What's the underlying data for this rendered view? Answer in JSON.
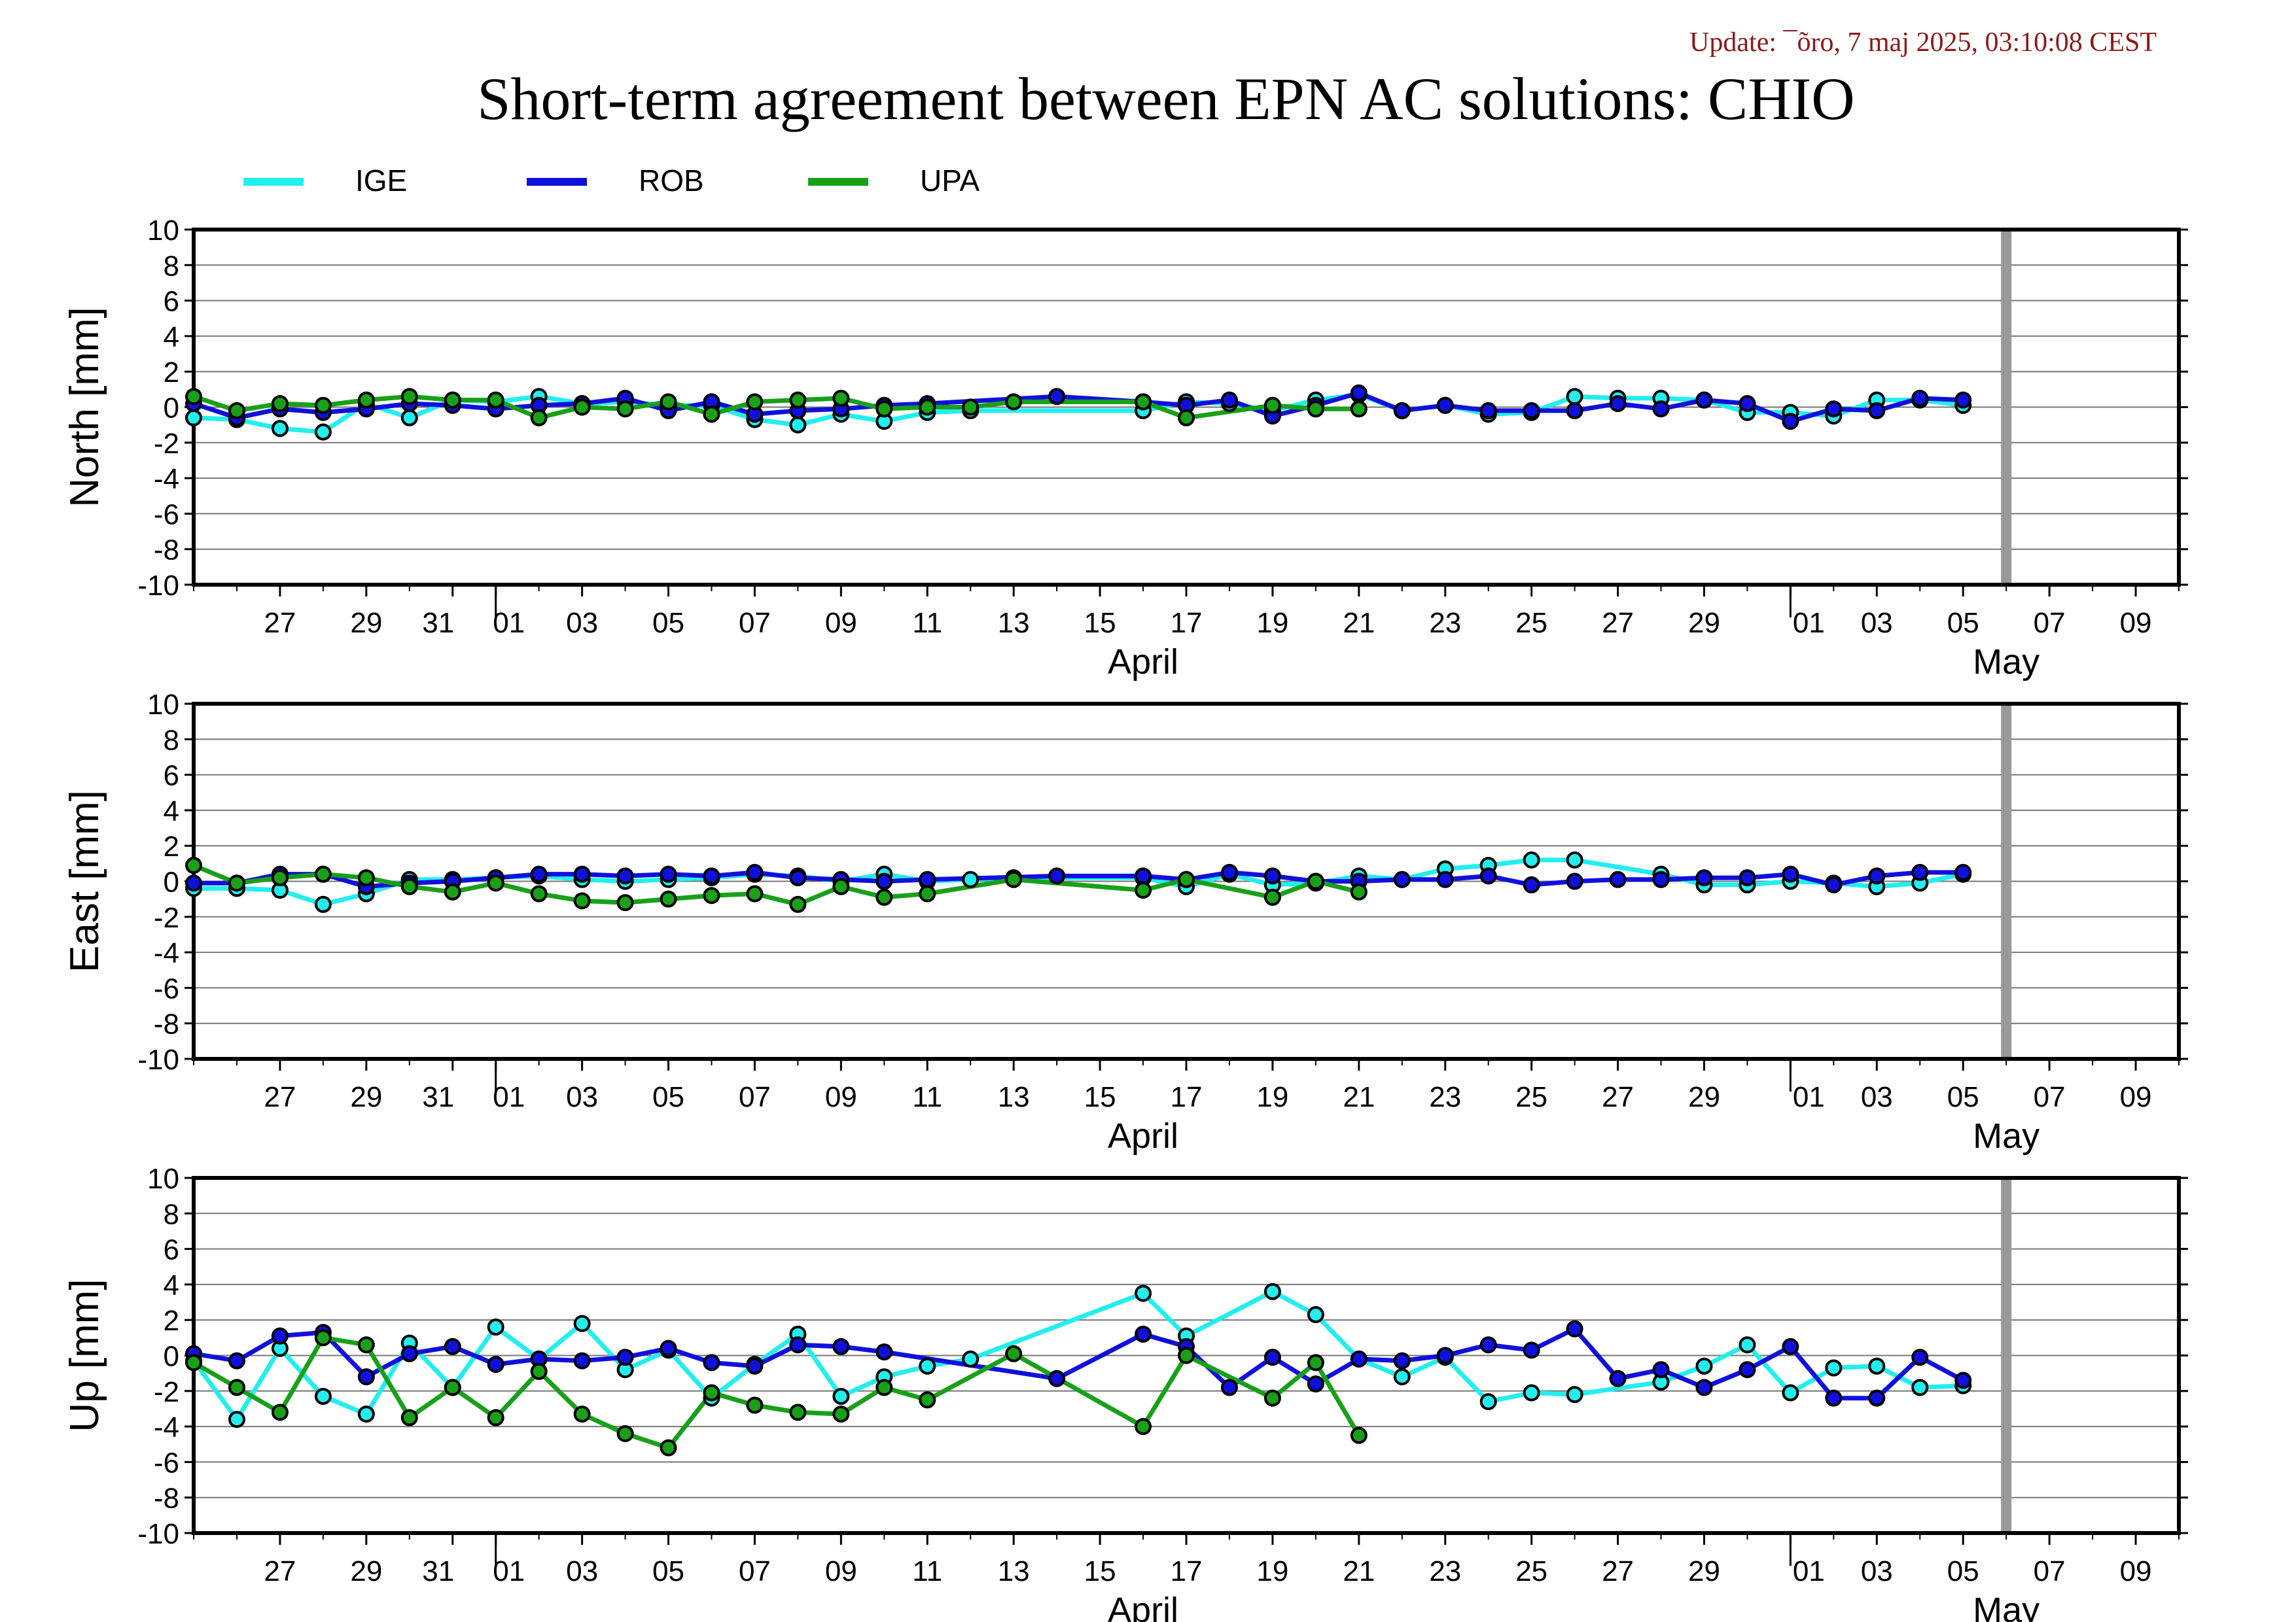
{
  "update_text": "Update: ¯õro, 7 maj 2025, 03:10:08 CEST",
  "title": "Short-term agreement between EPN AC solutions: CHIO",
  "legend": [
    {
      "name": "IGE",
      "color": "#22eeee"
    },
    {
      "name": "ROB",
      "color": "#1010dd"
    },
    {
      "name": "UPA",
      "color": "#18a018"
    }
  ],
  "colors": {
    "update_text": "#8b1a1a",
    "frame": "#000000",
    "grid": "#777777",
    "today_marker": "#999999"
  },
  "chart_data": {
    "type": "line",
    "x_range": [
      "2025-03-25",
      "2025-05-10"
    ],
    "today_marker": "2025-05-06",
    "x_tick_labels": [
      "27",
      "29",
      "31",
      "01",
      "03",
      "05",
      "07",
      "09",
      "11",
      "13",
      "15",
      "17",
      "19",
      "21",
      "23",
      "25",
      "27",
      "29",
      "01",
      "03",
      "05",
      "07",
      "09"
    ],
    "x_tick_dates": [
      "2025-03-27",
      "2025-03-29",
      "2025-03-31",
      "2025-04-01",
      "2025-04-03",
      "2025-04-05",
      "2025-04-07",
      "2025-04-09",
      "2025-04-11",
      "2025-04-13",
      "2025-04-15",
      "2025-04-17",
      "2025-04-19",
      "2025-04-21",
      "2025-04-23",
      "2025-04-25",
      "2025-04-27",
      "2025-04-29",
      "2025-05-01",
      "2025-05-03",
      "2025-05-05",
      "2025-05-07",
      "2025-05-09"
    ],
    "month_labels": [
      {
        "label": "April",
        "date": "2025-04-16"
      },
      {
        "label": "May",
        "date": "2025-05-06"
      }
    ],
    "month_boundaries": [
      "2025-04-01",
      "2025-05-01"
    ],
    "y_ticks": [
      10,
      8,
      6,
      4,
      2,
      0,
      -2,
      -4,
      -6,
      -8,
      -10
    ],
    "ylim": [
      -10,
      10
    ],
    "grid": true,
    "legend_position": "top-left",
    "panels": [
      {
        "ylabel": "North [mm]",
        "series": [
          {
            "name": "IGE",
            "dates": [
              "2025-03-25",
              "2025-03-26",
              "2025-03-27",
              "2025-03-28",
              "2025-03-29",
              "2025-03-30",
              "2025-03-31",
              "2025-04-01",
              "2025-04-02",
              "2025-04-03",
              "2025-04-04",
              "2025-04-05",
              "2025-04-06",
              "2025-04-07",
              "2025-04-08",
              "2025-04-09",
              "2025-04-10",
              "2025-04-11",
              "2025-04-12",
              "2025-04-16",
              "2025-04-17",
              "2025-04-18",
              "2025-04-19",
              "2025-04-20",
              "2025-04-21",
              "2025-04-22",
              "2025-04-23",
              "2025-04-24",
              "2025-04-25",
              "2025-04-26",
              "2025-04-27",
              "2025-04-28",
              "2025-04-29",
              "2025-04-30",
              "2025-05-01",
              "2025-05-02",
              "2025-05-03",
              "2025-05-04",
              "2025-05-05"
            ],
            "values": [
              -0.6,
              -0.7,
              -1.2,
              -1.4,
              0.2,
              -0.6,
              0.4,
              0.3,
              0.6,
              0.2,
              0.3,
              0.1,
              0.1,
              -0.7,
              -1.0,
              -0.4,
              -0.8,
              -0.3,
              -0.2,
              -0.2,
              0.3,
              0.2,
              -0.2,
              0.4,
              0.7,
              -0.2,
              0.1,
              -0.4,
              -0.3,
              0.6,
              0.5,
              0.5,
              0.4,
              -0.3,
              -0.3,
              -0.5,
              0.4,
              0.4,
              0.1
            ]
          },
          {
            "name": "ROB",
            "dates": [
              "2025-03-25",
              "2025-03-26",
              "2025-03-27",
              "2025-03-28",
              "2025-03-29",
              "2025-03-30",
              "2025-03-31",
              "2025-04-01",
              "2025-04-02",
              "2025-04-03",
              "2025-04-04",
              "2025-04-05",
              "2025-04-06",
              "2025-04-07",
              "2025-04-08",
              "2025-04-09",
              "2025-04-10",
              "2025-04-11",
              "2025-04-14",
              "2025-04-16",
              "2025-04-17",
              "2025-04-18",
              "2025-04-19",
              "2025-04-20",
              "2025-04-21",
              "2025-04-22",
              "2025-04-23",
              "2025-04-24",
              "2025-04-25",
              "2025-04-26",
              "2025-04-27",
              "2025-04-28",
              "2025-04-29",
              "2025-04-30",
              "2025-05-01",
              "2025-05-02",
              "2025-05-03",
              "2025-05-04",
              "2025-05-05"
            ],
            "values": [
              0.2,
              -0.6,
              -0.1,
              -0.3,
              -0.1,
              0.2,
              0.1,
              -0.1,
              0.1,
              0.2,
              0.5,
              -0.2,
              0.3,
              -0.4,
              -0.2,
              -0.1,
              0.1,
              0.2,
              0.6,
              0.3,
              0.1,
              0.4,
              -0.5,
              0.1,
              0.8,
              -0.2,
              0.1,
              -0.2,
              -0.2,
              -0.2,
              0.2,
              -0.1,
              0.4,
              0.2,
              -0.8,
              -0.1,
              -0.2,
              0.5,
              0.4
            ]
          },
          {
            "name": "UPA",
            "dates": [
              "2025-03-25",
              "2025-03-26",
              "2025-03-27",
              "2025-03-28",
              "2025-03-29",
              "2025-03-30",
              "2025-03-31",
              "2025-04-01",
              "2025-04-02",
              "2025-04-03",
              "2025-04-04",
              "2025-04-05",
              "2025-04-06",
              "2025-04-07",
              "2025-04-08",
              "2025-04-09",
              "2025-04-10",
              "2025-04-11",
              "2025-04-12",
              "2025-04-13",
              "2025-04-16",
              "2025-04-17",
              "2025-04-19",
              "2025-04-20",
              "2025-04-21"
            ],
            "values": [
              0.6,
              -0.2,
              0.2,
              0.1,
              0.4,
              0.6,
              0.4,
              0.4,
              -0.6,
              0.0,
              -0.1,
              0.3,
              -0.4,
              0.3,
              0.4,
              0.5,
              -0.1,
              0.0,
              0.0,
              0.3,
              0.3,
              -0.6,
              0.1,
              -0.1,
              -0.1
            ]
          }
        ]
      },
      {
        "ylabel": "East [mm]",
        "series": [
          {
            "name": "IGE",
            "dates": [
              "2025-03-25",
              "2025-03-26",
              "2025-03-27",
              "2025-03-28",
              "2025-03-29",
              "2025-03-30",
              "2025-03-31",
              "2025-04-01",
              "2025-04-02",
              "2025-04-03",
              "2025-04-04",
              "2025-04-05",
              "2025-04-06",
              "2025-04-07",
              "2025-04-08",
              "2025-04-09",
              "2025-04-10",
              "2025-04-11",
              "2025-04-12",
              "2025-04-13",
              "2025-04-16",
              "2025-04-17",
              "2025-04-18",
              "2025-04-19",
              "2025-04-20",
              "2025-04-21",
              "2025-04-22",
              "2025-04-23",
              "2025-04-24",
              "2025-04-25",
              "2025-04-26",
              "2025-04-28",
              "2025-04-29",
              "2025-04-30",
              "2025-05-01",
              "2025-05-02",
              "2025-05-03",
              "2025-05-04",
              "2025-05-05"
            ],
            "values": [
              -0.4,
              -0.4,
              -0.5,
              -1.3,
              -0.7,
              0.1,
              0.1,
              0.2,
              0.3,
              0.1,
              0.0,
              0.1,
              0.2,
              0.4,
              0.3,
              0.0,
              0.4,
              0.0,
              0.1,
              0.2,
              0.2,
              -0.3,
              0.4,
              -0.2,
              -0.1,
              0.3,
              0.1,
              0.7,
              0.9,
              1.2,
              1.2,
              0.4,
              -0.2,
              -0.2,
              0.0,
              -0.1,
              -0.3,
              -0.1,
              0.4
            ]
          },
          {
            "name": "ROB",
            "dates": [
              "2025-03-25",
              "2025-03-26",
              "2025-03-27",
              "2025-03-28",
              "2025-03-29",
              "2025-03-30",
              "2025-03-31",
              "2025-04-01",
              "2025-04-02",
              "2025-04-03",
              "2025-04-04",
              "2025-04-05",
              "2025-04-06",
              "2025-04-07",
              "2025-04-08",
              "2025-04-09",
              "2025-04-10",
              "2025-04-11",
              "2025-04-14",
              "2025-04-16",
              "2025-04-17",
              "2025-04-18",
              "2025-04-19",
              "2025-04-20",
              "2025-04-21",
              "2025-04-22",
              "2025-04-23",
              "2025-04-24",
              "2025-04-25",
              "2025-04-26",
              "2025-04-27",
              "2025-04-28",
              "2025-04-29",
              "2025-04-30",
              "2025-05-01",
              "2025-05-02",
              "2025-05-03",
              "2025-05-04",
              "2025-05-05"
            ],
            "values": [
              -0.1,
              -0.1,
              0.4,
              0.4,
              -0.3,
              -0.1,
              0.0,
              0.2,
              0.4,
              0.4,
              0.3,
              0.4,
              0.3,
              0.5,
              0.2,
              0.1,
              0.0,
              0.1,
              0.3,
              0.3,
              0.1,
              0.5,
              0.3,
              0.0,
              0.0,
              0.1,
              0.1,
              0.3,
              -0.2,
              0.0,
              0.1,
              0.1,
              0.2,
              0.2,
              0.4,
              -0.2,
              0.3,
              0.5,
              0.5
            ]
          },
          {
            "name": "UPA",
            "dates": [
              "2025-03-25",
              "2025-03-26",
              "2025-03-27",
              "2025-03-28",
              "2025-03-29",
              "2025-03-30",
              "2025-03-31",
              "2025-04-01",
              "2025-04-02",
              "2025-04-03",
              "2025-04-04",
              "2025-04-05",
              "2025-04-06",
              "2025-04-07",
              "2025-04-08",
              "2025-04-09",
              "2025-04-10",
              "2025-04-11",
              "2025-04-13",
              "2025-04-16",
              "2025-04-17",
              "2025-04-19",
              "2025-04-20",
              "2025-04-21"
            ],
            "values": [
              0.9,
              -0.1,
              0.2,
              0.4,
              0.2,
              -0.3,
              -0.6,
              -0.1,
              -0.7,
              -1.1,
              -1.2,
              -1.0,
              -0.8,
              -0.7,
              -1.3,
              -0.3,
              -0.9,
              -0.7,
              0.1,
              -0.5,
              0.1,
              -0.9,
              0.0,
              -0.6
            ]
          }
        ]
      },
      {
        "ylabel": "Up [mm]",
        "series": [
          {
            "name": "IGE",
            "dates": [
              "2025-03-25",
              "2025-03-26",
              "2025-03-27",
              "2025-03-28",
              "2025-03-29",
              "2025-03-30",
              "2025-03-31",
              "2025-04-01",
              "2025-04-02",
              "2025-04-03",
              "2025-04-04",
              "2025-04-05",
              "2025-04-06",
              "2025-04-07",
              "2025-04-08",
              "2025-04-09",
              "2025-04-10",
              "2025-04-11",
              "2025-04-12",
              "2025-04-16",
              "2025-04-17",
              "2025-04-19",
              "2025-04-20",
              "2025-04-21",
              "2025-04-22",
              "2025-04-23",
              "2025-04-24",
              "2025-04-25",
              "2025-04-26",
              "2025-04-28",
              "2025-04-29",
              "2025-04-30",
              "2025-05-01",
              "2025-05-02",
              "2025-05-03",
              "2025-05-04",
              "2025-05-05"
            ],
            "values": [
              -0.3,
              -3.6,
              0.4,
              -2.3,
              -3.3,
              0.7,
              -1.8,
              1.6,
              -0.2,
              1.8,
              -0.8,
              0.3,
              -2.4,
              -0.5,
              1.2,
              -2.3,
              -1.2,
              -0.6,
              -0.2,
              3.5,
              1.1,
              3.6,
              2.3,
              -0.2,
              -1.2,
              -0.1,
              -2.6,
              -2.1,
              -2.2,
              -1.5,
              -0.6,
              0.6,
              -2.1,
              -0.7,
              -0.6,
              -1.8,
              -1.7
            ]
          },
          {
            "name": "ROB",
            "dates": [
              "2025-03-25",
              "2025-03-26",
              "2025-03-27",
              "2025-03-28",
              "2025-03-29",
              "2025-03-30",
              "2025-03-31",
              "2025-04-01",
              "2025-04-02",
              "2025-04-03",
              "2025-04-04",
              "2025-04-05",
              "2025-04-06",
              "2025-04-07",
              "2025-04-08",
              "2025-04-09",
              "2025-04-10",
              "2025-04-14",
              "2025-04-16",
              "2025-04-17",
              "2025-04-18",
              "2025-04-19",
              "2025-04-20",
              "2025-04-21",
              "2025-04-22",
              "2025-04-23",
              "2025-04-24",
              "2025-04-25",
              "2025-04-26",
              "2025-04-27",
              "2025-04-28",
              "2025-04-29",
              "2025-04-30",
              "2025-05-01",
              "2025-05-02",
              "2025-05-03",
              "2025-05-04",
              "2025-05-05"
            ],
            "values": [
              0.1,
              -0.3,
              1.1,
              1.3,
              -1.2,
              0.1,
              0.5,
              -0.5,
              -0.2,
              -0.3,
              -0.1,
              0.4,
              -0.4,
              -0.6,
              0.6,
              0.5,
              0.2,
              -1.3,
              1.2,
              0.5,
              -1.8,
              -0.1,
              -1.6,
              -0.2,
              -0.3,
              0.0,
              0.6,
              0.3,
              1.5,
              -1.3,
              -0.8,
              -1.8,
              -0.8,
              0.5,
              -2.4,
              -2.4,
              -0.1,
              -1.4
            ]
          },
          {
            "name": "UPA",
            "dates": [
              "2025-03-25",
              "2025-03-26",
              "2025-03-27",
              "2025-03-28",
              "2025-03-29",
              "2025-03-30",
              "2025-03-31",
              "2025-04-01",
              "2025-04-02",
              "2025-04-03",
              "2025-04-04",
              "2025-04-05",
              "2025-04-06",
              "2025-04-07",
              "2025-04-08",
              "2025-04-09",
              "2025-04-10",
              "2025-04-11",
              "2025-04-13",
              "2025-04-16",
              "2025-04-17",
              "2025-04-19",
              "2025-04-20",
              "2025-04-21"
            ],
            "values": [
              -0.4,
              -1.8,
              -3.2,
              1.0,
              0.6,
              -3.5,
              -1.8,
              -3.5,
              -0.9,
              -3.3,
              -4.4,
              -5.2,
              -2.1,
              -2.8,
              -3.2,
              -3.3,
              -1.8,
              -2.5,
              0.1,
              -4.0,
              0.0,
              -2.4,
              -0.4,
              -4.5
            ]
          }
        ]
      }
    ]
  }
}
